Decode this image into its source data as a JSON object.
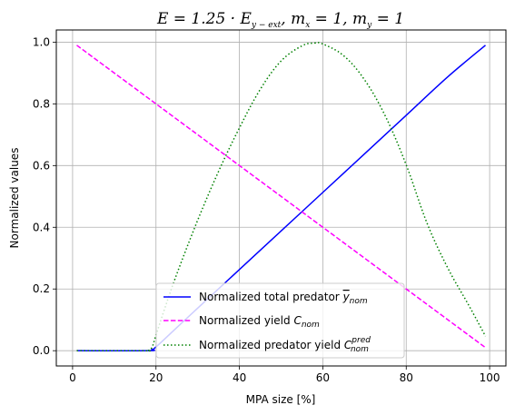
{
  "chart_data": {
    "type": "line",
    "title": "E = 1.25 · E_{y−ext},  m_x = 1,  m_y = 1",
    "title_parts": {
      "prefix": "E = 1.25 · E",
      "sub1": "y − ext",
      "mid1": ",  m",
      "sub2": "x",
      "mid2": " = 1,  m",
      "sub3": "y",
      "suffix": " = 1"
    },
    "xlabel": "MPA size [%]",
    "ylabel": "Normalized values",
    "xlim": [
      -3.9,
      103.9
    ],
    "ylim": [
      -0.0495,
      1.0395
    ],
    "xticks": [
      0,
      20,
      40,
      60,
      80,
      100
    ],
    "yticks": [
      0.0,
      0.2,
      0.4,
      0.6,
      0.8,
      1.0
    ],
    "xtick_labels": [
      "0",
      "20",
      "40",
      "60",
      "80",
      "100"
    ],
    "ytick_labels": [
      "0.0",
      "0.2",
      "0.4",
      "0.6",
      "0.8",
      "1.0"
    ],
    "grid": true,
    "legend_position": "lower center",
    "series": [
      {
        "name": "Normalized total predator ȳ_nom",
        "legend_main": "Normalized total predator ",
        "legend_sym": "y",
        "legend_sub": "nom",
        "color": "#0000ff",
        "style": "solid",
        "x": [
          1,
          18,
          19,
          20,
          25,
          30,
          40,
          50,
          60,
          70,
          80,
          90,
          99
        ],
        "y": [
          0.0,
          0.0,
          0.004,
          0.012,
          0.075,
          0.138,
          0.263,
          0.388,
          0.513,
          0.638,
          0.763,
          0.888,
          0.99
        ]
      },
      {
        "name": "Normalized yield C_nom",
        "legend_main": "Normalized yield ",
        "legend_sym": "C",
        "legend_sub": "nom",
        "color": "#ff00ff",
        "style": "dashed",
        "x": [
          1,
          99
        ],
        "y": [
          0.99,
          0.01
        ]
      },
      {
        "name": "Normalized predator yield C_nom^pred",
        "legend_main": "Normalized predator yield ",
        "legend_sym": "C",
        "legend_sub": "nom",
        "legend_sup": "pred",
        "color": "#008000",
        "style": "dotted",
        "x": [
          1,
          17,
          18,
          19,
          20,
          22,
          25,
          30,
          35,
          40,
          45,
          50,
          55,
          58,
          60,
          65,
          70,
          75,
          80,
          85,
          90,
          95,
          99
        ],
        "y": [
          0.0,
          0.0,
          0.0,
          0.01,
          0.05,
          0.133,
          0.249,
          0.423,
          0.581,
          0.722,
          0.847,
          0.939,
          0.988,
          0.997,
          0.994,
          0.956,
          0.878,
          0.76,
          0.602,
          0.413,
          0.267,
          0.147,
          0.047
        ]
      }
    ]
  }
}
